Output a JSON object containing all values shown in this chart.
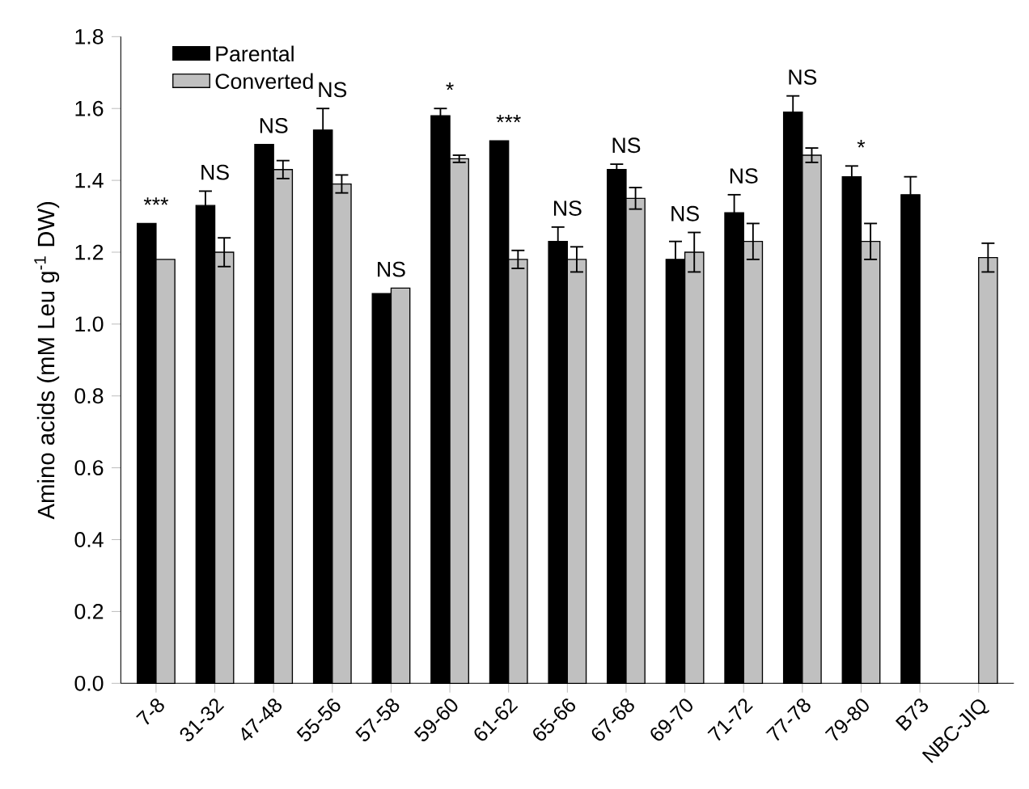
{
  "chart_data": {
    "type": "bar",
    "ylabel": "Amino acids (mM Leu g$^{-1}$ DW)",
    "categories": [
      "7-8",
      "31-32",
      "47-48",
      "55-56",
      "57-58",
      "59-60",
      "61-62",
      "65-66",
      "67-68",
      "69-70",
      "71-72",
      "77-78",
      "79-80",
      "B73",
      "NBC-JIQ"
    ],
    "series": [
      {
        "name": "Parental",
        "color": "#000000",
        "values": [
          1.28,
          1.33,
          1.5,
          1.54,
          1.085,
          1.58,
          1.51,
          1.23,
          1.43,
          1.18,
          1.31,
          1.59,
          1.41,
          1.36,
          null
        ],
        "errors": [
          null,
          0.04,
          null,
          0.06,
          null,
          0.02,
          null,
          0.04,
          0.015,
          0.05,
          0.05,
          0.045,
          0.03,
          0.05,
          null
        ]
      },
      {
        "name": "Converted",
        "color": "#c0c0c0",
        "values": [
          1.18,
          1.2,
          1.43,
          1.39,
          1.1,
          1.46,
          1.18,
          1.18,
          1.35,
          1.2,
          1.23,
          1.47,
          1.23,
          null,
          1.185
        ],
        "errors": [
          null,
          0.04,
          0.025,
          0.025,
          null,
          0.01,
          0.025,
          0.035,
          0.03,
          0.055,
          0.05,
          0.02,
          0.05,
          null,
          0.04
        ]
      }
    ],
    "ylim": [
      0,
      1.8
    ],
    "yticks": [
      {
        "value": 0,
        "label": "0.0"
      },
      0.2,
      0.4,
      0.6,
      0.8,
      {
        "value": 1,
        "label": "1.0"
      },
      1.2,
      1.4,
      1.6,
      1.8
    ],
    "legend": "top left",
    "grid": false,
    "annotations": [
      "***",
      "NS",
      "NS",
      "NS",
      "NS",
      "*",
      "***",
      "NS",
      "NS",
      "NS",
      "NS",
      "NS",
      "*"
    ]
  }
}
